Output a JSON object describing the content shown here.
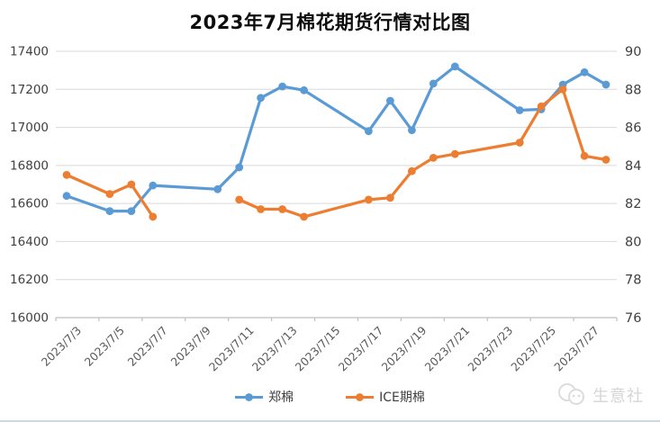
{
  "page": {
    "background": "#ffffff"
  },
  "watermark": {
    "text": "生意社",
    "color": "#d6d6d6"
  },
  "colors": {
    "series_blue": "#5B9BD5",
    "series_orange": "#ED7D31",
    "gridline": "#D9D9D9",
    "axis_line": "#BFBFBF",
    "y_tick_text": "#404040",
    "x_tick_text": "#595959",
    "title_text": "#0d0d0d",
    "bottom_border": "#ccd7e2"
  },
  "chart_data": {
    "type": "line",
    "title": "2023年7月棉花期货行情对比图",
    "xlabel": "",
    "ylabel_left": "",
    "ylabel_right": "",
    "grid": "horizontal",
    "legend_position": "bottom",
    "left_axis": {
      "min": 16000,
      "max": 17400,
      "step": 200,
      "ticks": [
        17400,
        17200,
        17000,
        16800,
        16600,
        16400,
        16200,
        16000
      ]
    },
    "right_axis": {
      "min": 76,
      "max": 90,
      "step": 2,
      "ticks": [
        90,
        88,
        86,
        84,
        82,
        80,
        78,
        76
      ]
    },
    "x_axis": {
      "kind": "date-days",
      "first_day": "2023/7/3",
      "last_day": "2023/7/28",
      "total_days": 26,
      "tick_every_days": 2,
      "labels": [
        "2023/7/3",
        "2023/7/5",
        "2023/7/7",
        "2023/7/9",
        "2023/7/11",
        "2023/7/13",
        "2023/7/15",
        "2023/7/17",
        "2023/7/19",
        "2023/7/21",
        "2023/7/23",
        "2023/7/25",
        "2023/7/27"
      ]
    },
    "series": [
      {
        "id": "zheng-cotton",
        "name": "郑棉",
        "axis": "left",
        "color": "#5B9BD5",
        "segments": [
          [
            [
              "2023/7/3",
              16640
            ],
            [
              "2023/7/5",
              16560
            ],
            [
              "2023/7/6",
              16560
            ],
            [
              "2023/7/7",
              16695
            ],
            [
              "2023/7/10",
              16675
            ],
            [
              "2023/7/11",
              16790
            ],
            [
              "2023/7/12",
              17155
            ],
            [
              "2023/7/13",
              17215
            ],
            [
              "2023/7/14",
              17195
            ],
            [
              "2023/7/17",
              16980
            ],
            [
              "2023/7/18",
              17140
            ],
            [
              "2023/7/19",
              16985
            ],
            [
              "2023/7/20",
              17230
            ],
            [
              "2023/7/21",
              17320
            ],
            [
              "2023/7/24",
              17090
            ],
            [
              "2023/7/25",
              17095
            ],
            [
              "2023/7/26",
              17225
            ],
            [
              "2023/7/27",
              17290
            ],
            [
              "2023/7/28",
              17225
            ]
          ]
        ]
      },
      {
        "id": "ice-cotton",
        "name": "ICE期棉",
        "axis": "right",
        "color": "#ED7D31",
        "segments": [
          [
            [
              "2023/7/3",
              83.5
            ],
            [
              "2023/7/5",
              82.5
            ],
            [
              "2023/7/6",
              83.0
            ],
            [
              "2023/7/7",
              81.3
            ]
          ],
          [
            [
              "2023/7/11",
              82.2
            ],
            [
              "2023/7/12",
              81.7
            ],
            [
              "2023/7/13",
              81.7
            ],
            [
              "2023/7/14",
              81.3
            ],
            [
              "2023/7/17",
              82.2
            ],
            [
              "2023/7/18",
              82.3
            ],
            [
              "2023/7/19",
              83.7
            ],
            [
              "2023/7/20",
              84.4
            ],
            [
              "2023/7/21",
              84.6
            ],
            [
              "2023/7/24",
              85.2
            ],
            [
              "2023/7/25",
              87.1
            ],
            [
              "2023/7/26",
              88.0
            ],
            [
              "2023/7/27",
              84.5
            ],
            [
              "2023/7/28",
              84.3
            ]
          ]
        ]
      }
    ]
  }
}
